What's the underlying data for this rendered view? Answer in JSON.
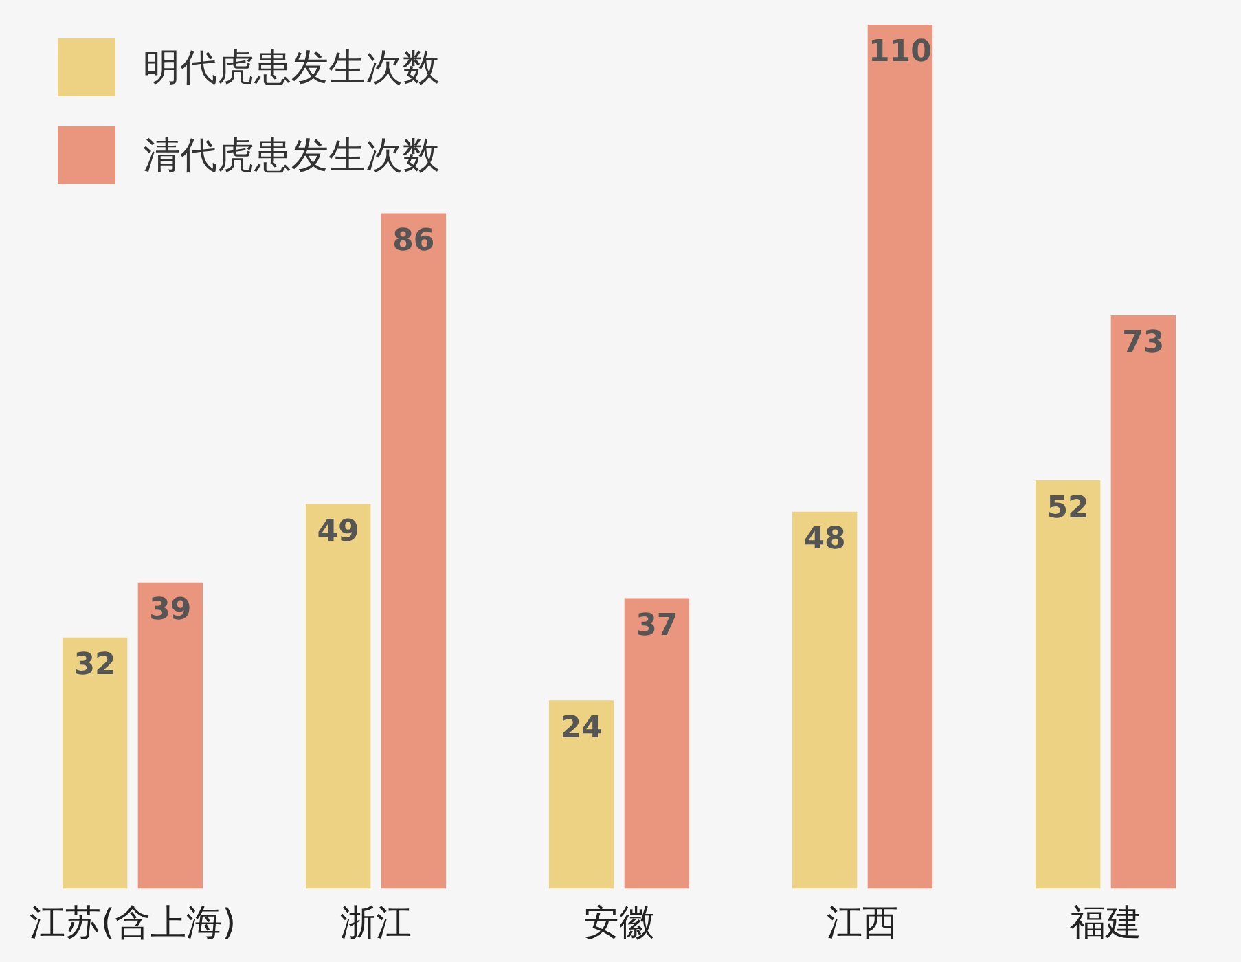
{
  "chart_data": {
    "type": "bar",
    "categories": [
      "江苏(含上海)",
      "浙江",
      "安徽",
      "江西",
      "福建"
    ],
    "series": [
      {
        "name": "明代虎患发生次数",
        "color": "#ecd282",
        "values": [
          32,
          49,
          24,
          48,
          52
        ]
      },
      {
        "name": "清代虎患发生次数",
        "color": "#ea967e",
        "values": [
          39,
          86,
          37,
          110,
          73
        ]
      }
    ],
    "data_labels": true,
    "legend": "top left",
    "relative": false
  }
}
